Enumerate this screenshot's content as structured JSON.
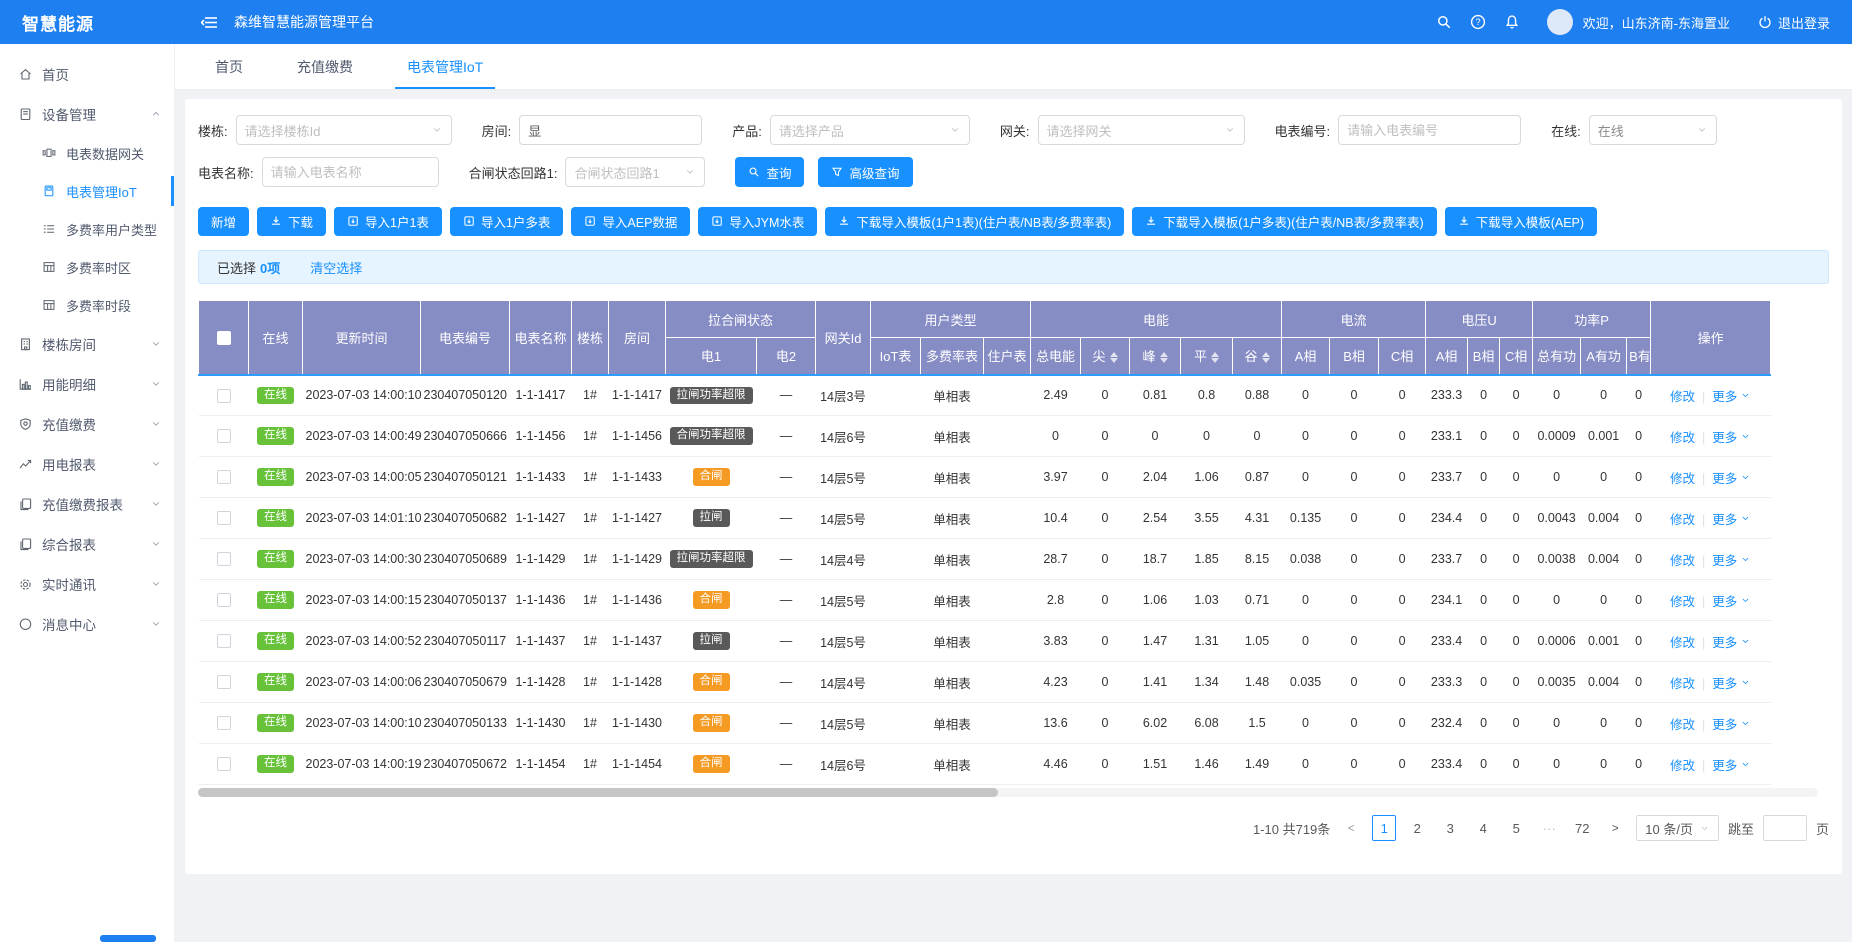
{
  "topbar": {
    "logo": "智慧能源",
    "platform_title": "森维智慧能源管理平台",
    "welcome": "欢迎，山东济南-东海置业",
    "logout": "退出登录"
  },
  "sidebar": {
    "items": [
      {
        "label": "首页",
        "icon": "home"
      },
      {
        "label": "设备管理",
        "icon": "device",
        "expanded": true,
        "children": [
          {
            "label": "电表数据网关",
            "icon": "gateway"
          },
          {
            "label": "电表管理IoT",
            "icon": "meter",
            "active": true
          },
          {
            "label": "多费率用户类型",
            "icon": "list"
          },
          {
            "label": "多费率时区",
            "icon": "grid"
          },
          {
            "label": "多费率时段",
            "icon": "grid"
          }
        ]
      },
      {
        "label": "楼栋房间",
        "icon": "building",
        "collapsible": true
      },
      {
        "label": "用能明细",
        "icon": "chart",
        "collapsible": true
      },
      {
        "label": "充值缴费",
        "icon": "shield",
        "collapsible": true
      },
      {
        "label": "用电报表",
        "icon": "trend",
        "collapsible": true
      },
      {
        "label": "充值缴费报表",
        "icon": "report",
        "collapsible": true
      },
      {
        "label": "综合报表",
        "icon": "report",
        "collapsible": true
      },
      {
        "label": "实时通讯",
        "icon": "gear",
        "collapsible": true
      },
      {
        "label": "消息中心",
        "icon": "message",
        "collapsible": true
      }
    ]
  },
  "tabs": [
    {
      "label": "首页"
    },
    {
      "label": "充值缴费"
    },
    {
      "label": "电表管理IoT",
      "active": true
    }
  ],
  "filters": {
    "row1": [
      {
        "label": "楼栋:",
        "type": "select",
        "placeholder": "请选择楼栋Id"
      },
      {
        "label": "房间:",
        "type": "input",
        "value": "显"
      },
      {
        "label": "产品:",
        "type": "select",
        "placeholder": "请选择产品"
      },
      {
        "label": "网关:",
        "type": "select",
        "placeholder": "请选择网关"
      },
      {
        "label": "电表编号:",
        "type": "input",
        "placeholder": "请输入电表编号"
      },
      {
        "label": "在线:",
        "type": "select",
        "value": "在线"
      }
    ],
    "row2": [
      {
        "label": "电表名称:",
        "type": "input",
        "placeholder": "请输入电表名称"
      },
      {
        "label": "合闸状态回路1:",
        "type": "select",
        "placeholder": "合闸状态回路1"
      }
    ],
    "search_button": "查询",
    "advanced_button": "高级查询"
  },
  "action_buttons": [
    {
      "label": "新增"
    },
    {
      "label": "下载",
      "icon": "download"
    },
    {
      "label": "导入1户1表",
      "icon": "import"
    },
    {
      "label": "导入1户多表",
      "icon": "import"
    },
    {
      "label": "导入AEP数据",
      "icon": "import"
    },
    {
      "label": "导入JYM水表",
      "icon": "import"
    },
    {
      "label": "下载导入模板(1户1表)(住户表/NB表/多费率表)",
      "icon": "download"
    },
    {
      "label": "下载导入模板(1户多表)(住户表/NB表/多费率表)",
      "icon": "download"
    },
    {
      "label": "下载导入模板(AEP)",
      "icon": "download"
    }
  ],
  "selection_bar": {
    "prefix": "已选择",
    "count": "0项",
    "clear": "清空选择"
  },
  "table": {
    "header_row1": [
      {
        "type": "checkbox",
        "rowspan": 2
      },
      {
        "label": "在线",
        "rowspan": 2
      },
      {
        "label": "更新时间",
        "rowspan": 2
      },
      {
        "label": "电表编号",
        "rowspan": 2
      },
      {
        "label": "电表名称",
        "rowspan": 2
      },
      {
        "label": "楼栋",
        "rowspan": 2
      },
      {
        "label": "房间",
        "rowspan": 2
      },
      {
        "label": "拉合闸状态",
        "colspan": 2
      },
      {
        "label": "网关Id",
        "rowspan": 2
      },
      {
        "label": "用户类型",
        "colspan": 3
      },
      {
        "label": "电能",
        "colspan": 5
      },
      {
        "label": "电流",
        "colspan": 3
      },
      {
        "label": "电压U",
        "colspan": 3
      },
      {
        "label": "功率P",
        "colspan": 3
      },
      {
        "label": "操作",
        "rowspan": 2
      }
    ],
    "header_row2": [
      {
        "label": "电1"
      },
      {
        "label": "电2"
      },
      {
        "label": "IoT表"
      },
      {
        "label": "多费率表"
      },
      {
        "label": "住户表"
      },
      {
        "label": "总电能"
      },
      {
        "label": "尖",
        "sortable": true
      },
      {
        "label": "峰",
        "sortable": true
      },
      {
        "label": "平",
        "sortable": true
      },
      {
        "label": "谷",
        "sortable": true
      },
      {
        "label": "A相"
      },
      {
        "label": "B相"
      },
      {
        "label": "C相"
      },
      {
        "label": "A相"
      },
      {
        "label": "B相"
      },
      {
        "label": "C相"
      },
      {
        "label": "总有功"
      },
      {
        "label": "A有功"
      },
      {
        "label": "B有"
      }
    ],
    "online_label": "在线",
    "row_actions": {
      "edit": "修改",
      "more": "更多"
    },
    "rows": [
      {
        "time": "2023-07-03 14:00:10",
        "meter_no": "230407050120",
        "meter_name": "1-1-1417",
        "building": "1#",
        "room": "1-1-1417",
        "circuit1": "拉闸功率超限",
        "circuit1_style": "dark",
        "circuit2": "—",
        "gateway_id": "14层3号",
        "user_type": "单相表",
        "values": [
          "2.49",
          "0",
          "0.81",
          "0.8",
          "0.88",
          "0",
          "0",
          "0",
          "233.3",
          "0",
          "0",
          "0",
          "0",
          "0"
        ]
      },
      {
        "time": "2023-07-03 14:00:49",
        "meter_no": "230407050666",
        "meter_name": "1-1-1456",
        "building": "1#",
        "room": "1-1-1456",
        "circuit1": "合闸功率超限",
        "circuit1_style": "dark",
        "circuit2": "—",
        "gateway_id": "14层6号",
        "user_type": "单相表",
        "values": [
          "0",
          "0",
          "0",
          "0",
          "0",
          "0",
          "0",
          "0",
          "233.1",
          "0",
          "0",
          "0.0009",
          "0.001",
          "0"
        ]
      },
      {
        "time": "2023-07-03 14:00:05",
        "meter_no": "230407050121",
        "meter_name": "1-1-1433",
        "building": "1#",
        "room": "1-1-1433",
        "circuit1": "合闸",
        "circuit1_style": "orange",
        "circuit2": "—",
        "gateway_id": "14层5号",
        "user_type": "单相表",
        "values": [
          "3.97",
          "0",
          "2.04",
          "1.06",
          "0.87",
          "0",
          "0",
          "0",
          "233.7",
          "0",
          "0",
          "0",
          "0",
          "0"
        ]
      },
      {
        "time": "2023-07-03 14:01:10",
        "meter_no": "230407050682",
        "meter_name": "1-1-1427",
        "building": "1#",
        "room": "1-1-1427",
        "circuit1": "拉闸",
        "circuit1_style": "dark",
        "circuit2": "—",
        "gateway_id": "14层5号",
        "user_type": "单相表",
        "values": [
          "10.4",
          "0",
          "2.54",
          "3.55",
          "4.31",
          "0.135",
          "0",
          "0",
          "234.4",
          "0",
          "0",
          "0.0043",
          "0.004",
          "0"
        ]
      },
      {
        "time": "2023-07-03 14:00:30",
        "meter_no": "230407050689",
        "meter_name": "1-1-1429",
        "building": "1#",
        "room": "1-1-1429",
        "circuit1": "拉闸功率超限",
        "circuit1_style": "dark",
        "circuit2": "—",
        "gateway_id": "14层4号",
        "user_type": "单相表",
        "values": [
          "28.7",
          "0",
          "18.7",
          "1.85",
          "8.15",
          "0.038",
          "0",
          "0",
          "233.7",
          "0",
          "0",
          "0.0038",
          "0.004",
          "0"
        ]
      },
      {
        "time": "2023-07-03 14:00:15",
        "meter_no": "230407050137",
        "meter_name": "1-1-1436",
        "building": "1#",
        "room": "1-1-1436",
        "circuit1": "合闸",
        "circuit1_style": "orange",
        "circuit2": "—",
        "gateway_id": "14层5号",
        "user_type": "单相表",
        "values": [
          "2.8",
          "0",
          "1.06",
          "1.03",
          "0.71",
          "0",
          "0",
          "0",
          "234.1",
          "0",
          "0",
          "0",
          "0",
          "0"
        ]
      },
      {
        "time": "2023-07-03 14:00:52",
        "meter_no": "230407050117",
        "meter_name": "1-1-1437",
        "building": "1#",
        "room": "1-1-1437",
        "circuit1": "拉闸",
        "circuit1_style": "dark",
        "circuit2": "—",
        "gateway_id": "14层5号",
        "user_type": "单相表",
        "values": [
          "3.83",
          "0",
          "1.47",
          "1.31",
          "1.05",
          "0",
          "0",
          "0",
          "233.4",
          "0",
          "0",
          "0.0006",
          "0.001",
          "0"
        ]
      },
      {
        "time": "2023-07-03 14:00:06",
        "meter_no": "230407050679",
        "meter_name": "1-1-1428",
        "building": "1#",
        "room": "1-1-1428",
        "circuit1": "合闸",
        "circuit1_style": "orange",
        "circuit2": "—",
        "gateway_id": "14层4号",
        "user_type": "单相表",
        "values": [
          "4.23",
          "0",
          "1.41",
          "1.34",
          "1.48",
          "0.035",
          "0",
          "0",
          "233.3",
          "0",
          "0",
          "0.0035",
          "0.004",
          "0"
        ]
      },
      {
        "time": "2023-07-03 14:00:10",
        "meter_no": "230407050133",
        "meter_name": "1-1-1430",
        "building": "1#",
        "room": "1-1-1430",
        "circuit1": "合闸",
        "circuit1_style": "orange",
        "circuit2": "—",
        "gateway_id": "14层5号",
        "user_type": "单相表",
        "values": [
          "13.6",
          "0",
          "6.02",
          "6.08",
          "1.5",
          "0",
          "0",
          "0",
          "232.4",
          "0",
          "0",
          "0",
          "0",
          "0"
        ]
      },
      {
        "time": "2023-07-03 14:00:19",
        "meter_no": "230407050672",
        "meter_name": "1-1-1454",
        "building": "1#",
        "room": "1-1-1454",
        "circuit1": "合闸",
        "circuit1_style": "orange",
        "circuit2": "—",
        "gateway_id": "14层6号",
        "user_type": "单相表",
        "values": [
          "4.46",
          "0",
          "1.51",
          "1.46",
          "1.49",
          "0",
          "0",
          "0",
          "233.4",
          "0",
          "0",
          "0",
          "0",
          "0"
        ]
      }
    ]
  },
  "pagination": {
    "total_text": "1-10 共719条",
    "pages": [
      "1",
      "2",
      "3",
      "4",
      "5",
      "···",
      "72"
    ],
    "active_page": "1",
    "page_size": "10 条/页",
    "jump_label": "跳至",
    "page_unit": "页"
  }
}
